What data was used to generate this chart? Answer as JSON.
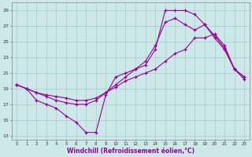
{
  "xlabel": "Windchill (Refroidissement éolien,°C)",
  "background_color": "#cce8e8",
  "grid_color": "#aacccc",
  "line_color": "#990099",
  "xlim": [
    -0.5,
    23.5
  ],
  "ylim": [
    12.5,
    30.0
  ],
  "yticks": [
    13,
    15,
    17,
    19,
    21,
    23,
    25,
    27,
    29
  ],
  "xticks": [
    0,
    1,
    2,
    3,
    4,
    5,
    6,
    7,
    8,
    9,
    10,
    11,
    12,
    13,
    14,
    15,
    16,
    17,
    18,
    19,
    20,
    21,
    22,
    23
  ],
  "series1_x": [
    0,
    1,
    2,
    3,
    4,
    5,
    6,
    7,
    8,
    9,
    10,
    11,
    12,
    13,
    14,
    15,
    16,
    17,
    18,
    19,
    20,
    21,
    22,
    23
  ],
  "series1_y": [
    19.5,
    19.0,
    17.5,
    17.0,
    16.5,
    15.5,
    14.7,
    13.4,
    13.4,
    18.2,
    20.5,
    21.0,
    21.5,
    22.0,
    24.0,
    29.0,
    29.0,
    29.0,
    28.5,
    27.2,
    25.8,
    24.2,
    21.5,
    20.2
  ],
  "series2_x": [
    0,
    1,
    2,
    3,
    4,
    5,
    6,
    7,
    8,
    9,
    10,
    11,
    12,
    13,
    14,
    15,
    16,
    17,
    18,
    19,
    20,
    21,
    22,
    23
  ],
  "series2_y": [
    19.5,
    19.0,
    18.5,
    18.0,
    17.5,
    17.2,
    17.0,
    17.0,
    17.5,
    18.5,
    19.2,
    20.0,
    20.5,
    21.0,
    21.5,
    22.5,
    23.5,
    24.0,
    25.5,
    25.5,
    26.0,
    24.5,
    21.5,
    20.5
  ],
  "series3_x": [
    0,
    1,
    2,
    3,
    4,
    5,
    6,
    7,
    8,
    9,
    10,
    11,
    12,
    13,
    14,
    15,
    16,
    17,
    18,
    19,
    20,
    21,
    22,
    23
  ],
  "series3_y": [
    19.5,
    19.0,
    18.5,
    18.2,
    18.0,
    17.8,
    17.5,
    17.5,
    17.8,
    18.5,
    19.5,
    20.5,
    21.5,
    22.5,
    24.5,
    27.5,
    28.0,
    27.2,
    26.5,
    27.2,
    25.5,
    24.0,
    21.5,
    20.5
  ]
}
